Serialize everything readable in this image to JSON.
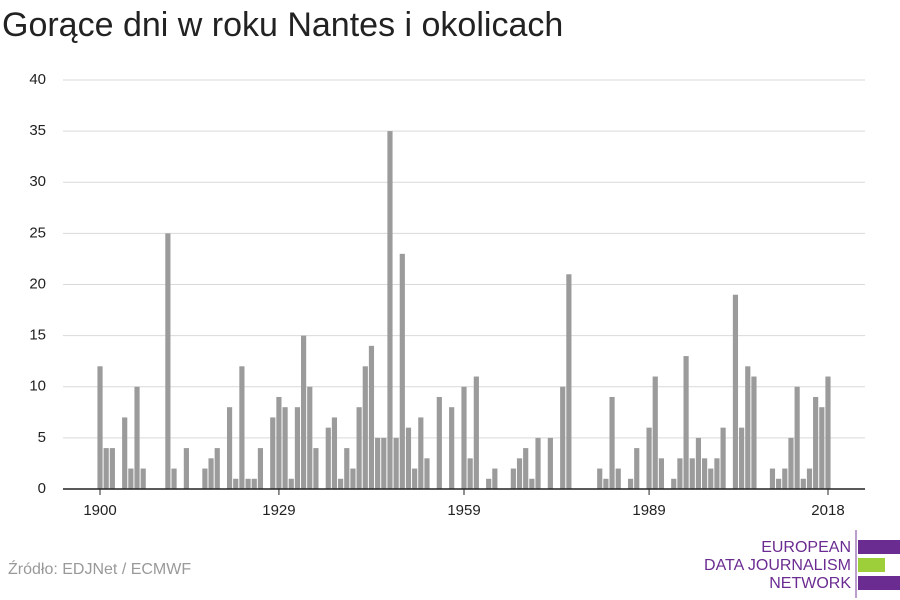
{
  "chart_data": {
    "type": "bar",
    "title": "Gorące dni w roku Nantes i okolicach",
    "x": [
      1900,
      1901,
      1902,
      1903,
      1904,
      1905,
      1906,
      1907,
      1908,
      1909,
      1910,
      1911,
      1912,
      1913,
      1914,
      1915,
      1916,
      1917,
      1918,
      1919,
      1920,
      1921,
      1922,
      1923,
      1924,
      1925,
      1926,
      1927,
      1928,
      1929,
      1930,
      1931,
      1932,
      1933,
      1934,
      1935,
      1936,
      1937,
      1938,
      1939,
      1940,
      1941,
      1942,
      1943,
      1944,
      1945,
      1946,
      1947,
      1948,
      1949,
      1950,
      1951,
      1952,
      1953,
      1954,
      1955,
      1956,
      1957,
      1958,
      1959,
      1960,
      1961,
      1962,
      1963,
      1964,
      1965,
      1966,
      1967,
      1968,
      1969,
      1970,
      1971,
      1972,
      1973,
      1974,
      1975,
      1976,
      1977,
      1978,
      1979,
      1980,
      1981,
      1982,
      1983,
      1984,
      1985,
      1986,
      1987,
      1988,
      1989,
      1990,
      1991,
      1992,
      1993,
      1994,
      1995,
      1996,
      1997,
      1998,
      1999,
      2000,
      2001,
      2002,
      2003,
      2004,
      2005,
      2006,
      2007,
      2008,
      2009,
      2010,
      2011,
      2012,
      2013,
      2014,
      2015,
      2016,
      2017,
      2018
    ],
    "values": [
      12,
      4,
      4,
      0,
      7,
      2,
      10,
      2,
      0,
      0,
      0,
      25,
      2,
      0,
      4,
      0,
      0,
      2,
      3,
      4,
      0,
      8,
      1,
      12,
      1,
      1,
      4,
      0,
      7,
      9,
      8,
      1,
      8,
      15,
      10,
      4,
      0,
      6,
      7,
      1,
      4,
      2,
      8,
      12,
      14,
      5,
      5,
      35,
      5,
      23,
      6,
      2,
      7,
      3,
      0,
      9,
      0,
      8,
      0,
      10,
      3,
      11,
      0,
      1,
      2,
      0,
      0,
      2,
      3,
      4,
      1,
      5,
      0,
      5,
      0,
      10,
      21,
      0,
      0,
      0,
      0,
      2,
      1,
      9,
      2,
      0,
      1,
      4,
      0,
      6,
      11,
      3,
      0,
      1,
      3,
      13,
      3,
      5,
      3,
      2,
      3,
      6,
      0,
      19,
      6,
      12,
      11,
      0,
      0,
      2,
      1,
      2,
      5,
      10,
      1,
      2,
      9,
      8,
      11
    ],
    "color": "#9b9b9b",
    "xlim": [
      1894,
      2024
    ],
    "xticks": [
      1900,
      1929,
      1959,
      1989,
      2018
    ],
    "ylim": [
      0,
      40
    ],
    "yticks": [
      0,
      5,
      10,
      15,
      20,
      25,
      30,
      35,
      40
    ],
    "grid": true
  },
  "source": "Źródło: EDJNet / ECMWF",
  "logo": {
    "lines": [
      "EUROPEAN",
      "DATA JOURNALISM",
      "NETWORK"
    ]
  }
}
